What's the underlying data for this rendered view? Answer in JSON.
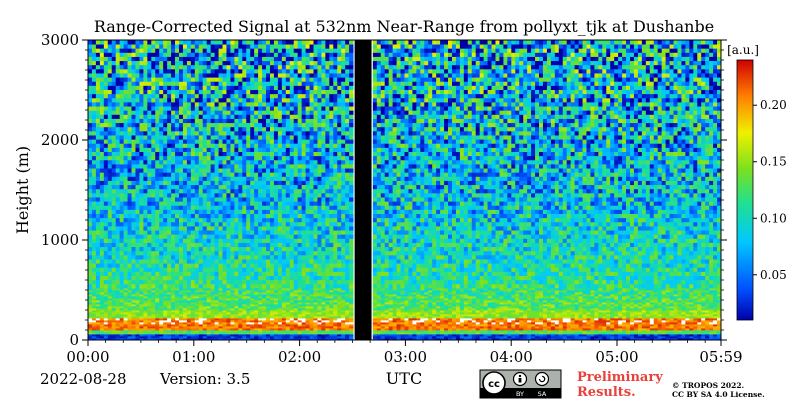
{
  "chart_data": {
    "type": "heatmap",
    "title": "Range-Corrected Signal at 532nm Near-Range from pollyxt_tjk at Dushanbe",
    "xlabel": "UTC",
    "ylabel": "Height (m)",
    "x_ticks": [
      "00:00",
      "01:00",
      "02:00",
      "03:00",
      "04:00",
      "05:00",
      "05:59"
    ],
    "x_tick_hours": [
      0,
      1,
      2,
      3,
      4,
      5,
      5.983
    ],
    "xlim_hours": [
      0,
      5.983
    ],
    "y_ticks": [
      0,
      1000,
      2000,
      3000
    ],
    "ylim": [
      0,
      3000
    ],
    "colorbar": {
      "label": "[a.u.]",
      "ticks": [
        "0.05",
        "0.10",
        "0.15",
        "0.20"
      ],
      "tick_values": [
        0.05,
        0.1,
        0.15,
        0.2
      ],
      "range": [
        0.01,
        0.24
      ],
      "colormap": "jet"
    },
    "data_gap_hours": [
      2.52,
      2.68
    ],
    "profile_description": [
      {
        "height_m": [
          0,
          60
        ],
        "level": "low (surface blind zone)"
      },
      {
        "height_m": [
          100,
          220
        ],
        "level": "high (0.20-0.24), aerosol/boundary layer"
      },
      {
        "height_m": [
          220,
          600
        ],
        "level": "moderate (0.12-0.16)"
      },
      {
        "height_m": [
          600,
          1500
        ],
        "level": "moderate-low (0.08-0.12)"
      },
      {
        "height_m": [
          1500,
          3000
        ],
        "level": "noisy, ~0.05-0.12"
      }
    ]
  },
  "footer": {
    "date": "2022-08-28",
    "version": "Version: 3.5",
    "preliminary_line1": "Preliminary",
    "preliminary_line2": "Results.",
    "copyright_line1": "© TROPOS 2022.",
    "copyright_line2": "CC BY SA 4.0 License.",
    "license_badge": {
      "cc": "cc",
      "by": "BY",
      "sa": "SA"
    }
  },
  "colors": {
    "preliminary": "#e8403a",
    "gap": "#000000"
  }
}
